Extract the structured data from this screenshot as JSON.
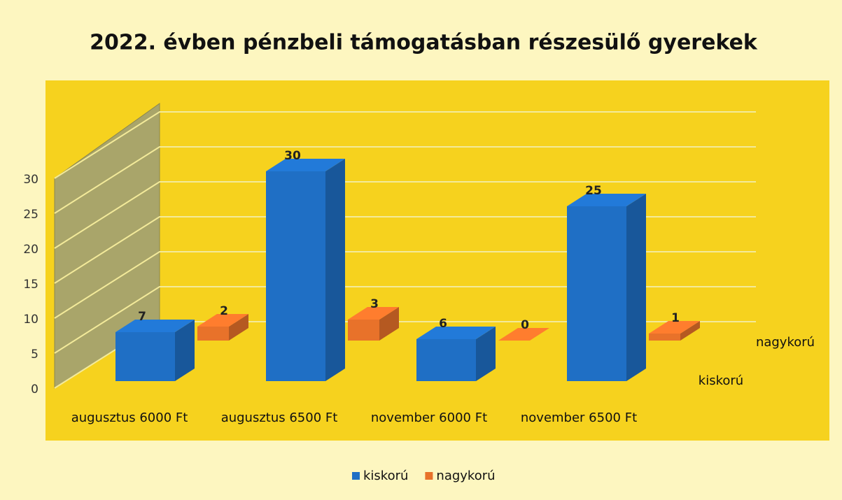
{
  "chart_data": {
    "type": "bar3d",
    "title": "2022. évben pénzbeli támogatásban részesülő gyerekek",
    "categories": [
      "augusztus 6000 Ft",
      "augusztus 6500 Ft",
      "november 6000 Ft",
      "november 6500 Ft"
    ],
    "series": [
      {
        "name": "kiskorú",
        "color": "#1f6fc5",
        "values": [
          7,
          30,
          6,
          25
        ]
      },
      {
        "name": "nagykorú",
        "color": "#e8722a",
        "values": [
          2,
          3,
          0,
          1
        ]
      }
    ],
    "ylim": [
      0,
      30
    ],
    "yticks": [
      0,
      5,
      10,
      15,
      20,
      25,
      30
    ],
    "grid": true,
    "legend": "bottom"
  }
}
